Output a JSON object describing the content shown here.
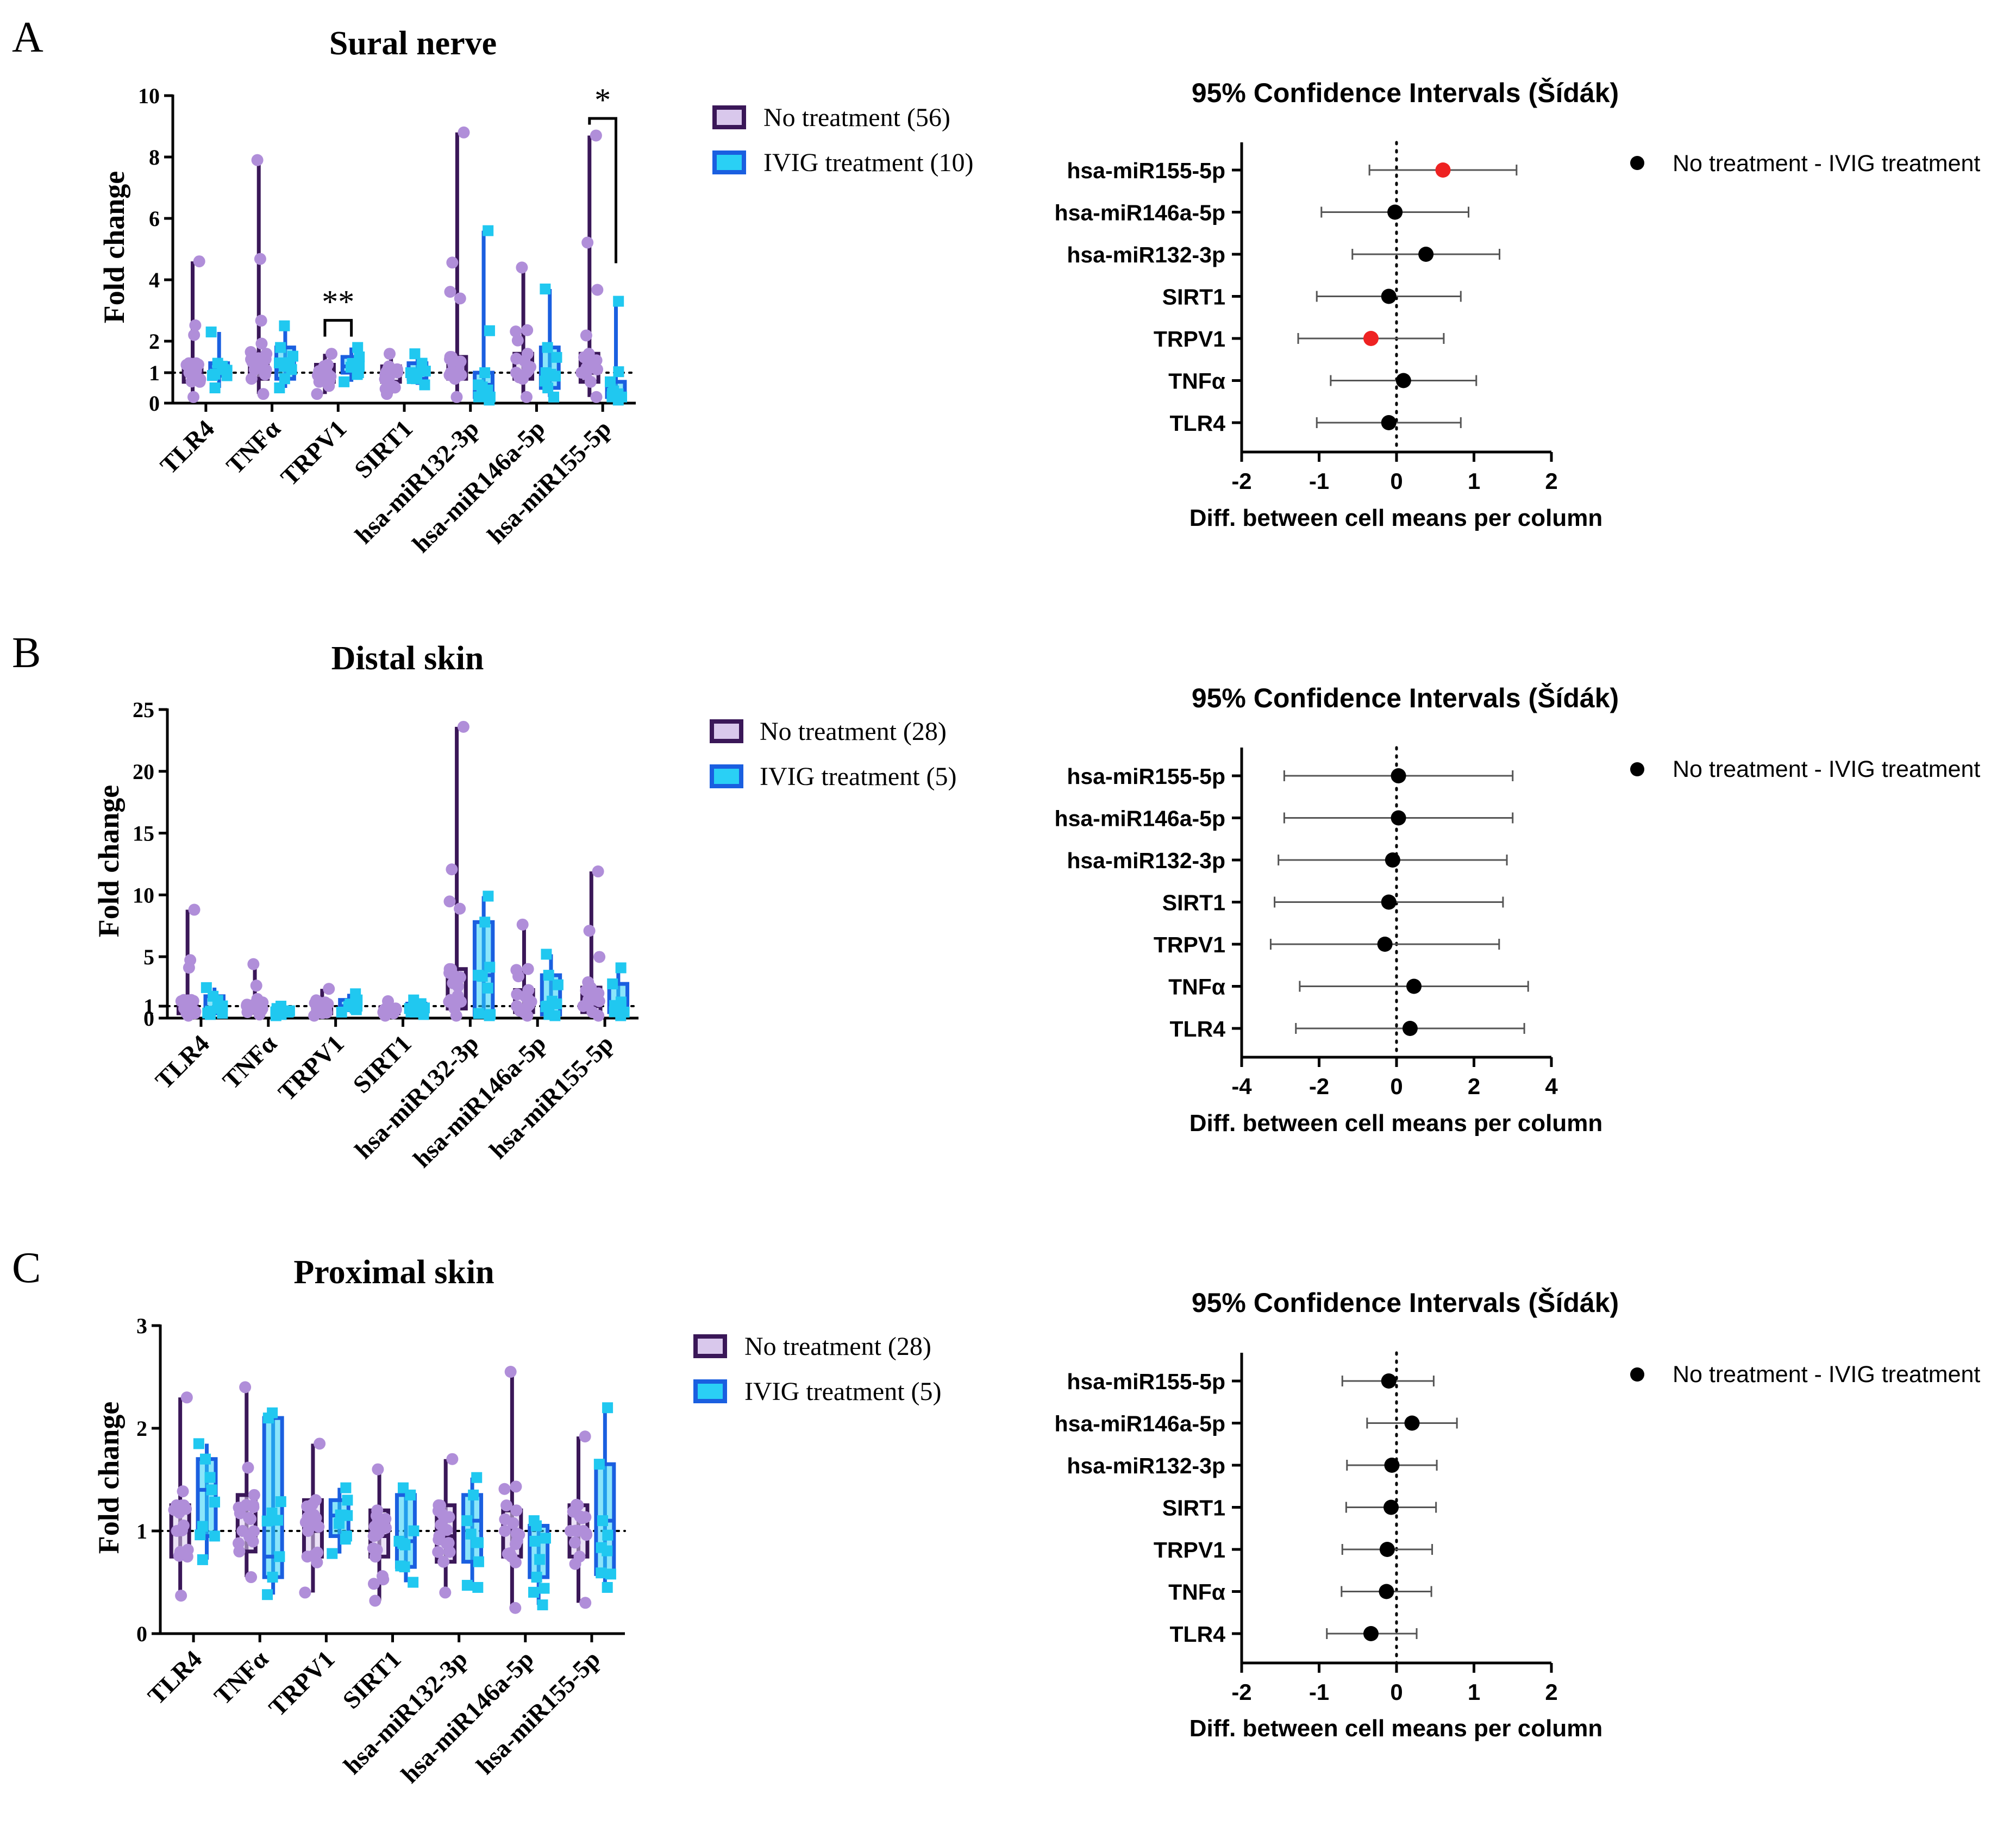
{
  "figure": {
    "colors": {
      "no_treatment_fill": "#d9c8ec",
      "no_treatment_stroke": "#3a1758",
      "no_treatment_points": "#b08ed9",
      "ivig_fill": "#2ad0f5",
      "ivig_stroke": "#1a5fe0",
      "ivig_points": "#20c8f0",
      "ci_point": "#000000",
      "ci_point_sig": "#ee2222"
    }
  },
  "chart_data": [
    {
      "id": "A-fold",
      "type": "box",
      "panel_letter": "A",
      "title": "Sural nerve",
      "ylabel": "Fold change",
      "yscale": "segmented",
      "ylim": [
        0,
        10
      ],
      "yticks": [
        0,
        1,
        2,
        4,
        6,
        8,
        10
      ],
      "categories": [
        "TLR4",
        "TNFα",
        "TRPV1",
        "SIRT1",
        "hsa-miR132-3p",
        "hsa-miR146a-5p",
        "hsa-miR155-5p"
      ],
      "legend": [
        {
          "label": "No treatment (56)",
          "key": "no_treatment"
        },
        {
          "label": "IVIG treatment (10)",
          "key": "ivig"
        }
      ],
      "series": [
        {
          "name": "No treatment",
          "key": "no_treatment",
          "boxes": [
            {
              "min": 0.2,
              "q1": 0.7,
              "median": 1.0,
              "q3": 1.3,
              "max": 4.6
            },
            {
              "min": 0.3,
              "q1": 0.8,
              "median": 1.1,
              "q3": 1.6,
              "max": 7.9
            },
            {
              "min": 0.3,
              "q1": 0.7,
              "median": 0.95,
              "q3": 1.25,
              "max": 1.6
            },
            {
              "min": 0.3,
              "q1": 0.7,
              "median": 0.95,
              "q3": 1.2,
              "max": 1.6
            },
            {
              "min": 0.2,
              "q1": 0.8,
              "median": 1.0,
              "q3": 1.5,
              "max": 8.8
            },
            {
              "min": 0.2,
              "q1": 0.8,
              "median": 1.0,
              "q3": 1.6,
              "max": 4.4
            },
            {
              "min": 0.2,
              "q1": 0.7,
              "median": 1.0,
              "q3": 1.6,
              "max": 8.7
            }
          ]
        },
        {
          "name": "IVIG treatment",
          "key": "ivig",
          "boxes": [
            {
              "min": 0.5,
              "q1": 0.9,
              "median": 1.1,
              "q3": 1.3,
              "max": 2.3
            },
            {
              "min": 0.5,
              "q1": 0.8,
              "median": 1.1,
              "q3": 1.8,
              "max": 2.5
            },
            {
              "min": 0.7,
              "q1": 1.0,
              "median": 1.2,
              "q3": 1.5,
              "max": 1.8
            },
            {
              "min": 0.6,
              "q1": 0.8,
              "median": 1.0,
              "q3": 1.3,
              "max": 1.6
            },
            {
              "min": 0.1,
              "q1": 0.2,
              "median": 0.6,
              "q3": 1.0,
              "max": 5.6
            },
            {
              "min": 0.2,
              "q1": 0.5,
              "median": 1.0,
              "q3": 1.8,
              "max": 3.7
            },
            {
              "min": 0.1,
              "q1": 0.2,
              "median": 0.4,
              "q3": 0.7,
              "max": 3.3
            }
          ]
        }
      ],
      "significance": [
        {
          "category": "TRPV1",
          "label": "**"
        },
        {
          "category": "hsa-miR155-5p",
          "label": "*"
        }
      ]
    },
    {
      "id": "A-ci",
      "type": "forest",
      "title": "95% Confidence Intervals (Šídák)",
      "xlabel": "Diff. between cell means per column",
      "xlim": [
        -2,
        2
      ],
      "xticks": [
        -2,
        -1,
        0,
        1,
        2
      ],
      "legend": "No treatment - IVIG treatment",
      "rows": [
        {
          "label": "hsa-miR155-5p",
          "diff": 0.6,
          "lo": -0.35,
          "hi": 1.55,
          "significant": true
        },
        {
          "label": "hsa-miR146a-5p",
          "diff": -0.02,
          "lo": -0.97,
          "hi": 0.93,
          "significant": false
        },
        {
          "label": "hsa-miR132-3p",
          "diff": 0.38,
          "lo": -0.57,
          "hi": 1.33,
          "significant": false
        },
        {
          "label": "SIRT1",
          "diff": -0.1,
          "lo": -1.03,
          "hi": 0.83,
          "significant": false
        },
        {
          "label": "TRPV1",
          "diff": -0.33,
          "lo": -1.27,
          "hi": 0.61,
          "significant": true
        },
        {
          "label": "TNFα",
          "diff": 0.09,
          "lo": -0.85,
          "hi": 1.03,
          "significant": false
        },
        {
          "label": "TLR4",
          "diff": -0.1,
          "lo": -1.03,
          "hi": 0.83,
          "significant": false
        }
      ]
    },
    {
      "id": "B-fold",
      "type": "box",
      "panel_letter": "B",
      "title": "Distal skin",
      "ylabel": "Fold change",
      "yscale": "segmented",
      "ylim": [
        0,
        25
      ],
      "yticks": [
        0,
        1,
        5,
        10,
        15,
        20,
        25
      ],
      "categories": [
        "TLR4",
        "TNFα",
        "TRPV1",
        "SIRT1",
        "hsa-miR132-3p",
        "hsa-miR146a-5p",
        "hsa-miR155-5p"
      ],
      "legend": [
        {
          "label": "No treatment (28)",
          "key": "no_treatment"
        },
        {
          "label": "IVIG treatment (5)",
          "key": "ivig"
        }
      ],
      "series": [
        {
          "name": "No treatment",
          "key": "no_treatment",
          "boxes": [
            {
              "min": 0.2,
              "q1": 0.4,
              "median": 0.8,
              "q3": 1.5,
              "max": 8.8
            },
            {
              "min": 0.3,
              "q1": 0.5,
              "median": 0.8,
              "q3": 1.3,
              "max": 4.4
            },
            {
              "min": 0.2,
              "q1": 0.4,
              "median": 0.7,
              "q3": 1.2,
              "max": 2.4
            },
            {
              "min": 0.2,
              "q1": 0.4,
              "median": 0.6,
              "q3": 0.9,
              "max": 1.4
            },
            {
              "min": 0.2,
              "q1": 0.8,
              "median": 1.5,
              "q3": 4.0,
              "max": 23.6
            },
            {
              "min": 0.2,
              "q1": 0.5,
              "median": 1.0,
              "q3": 2.3,
              "max": 7.6
            },
            {
              "min": 0.2,
              "q1": 0.5,
              "median": 1.0,
              "q3": 2.5,
              "max": 11.9
            }
          ]
        },
        {
          "name": "IVIG treatment",
          "key": "ivig",
          "boxes": [
            {
              "min": 0.3,
              "q1": 0.4,
              "median": 0.8,
              "q3": 1.8,
              "max": 2.5
            },
            {
              "min": 0.2,
              "q1": 0.3,
              "median": 0.5,
              "q3": 0.8,
              "max": 1.0
            },
            {
              "min": 0.5,
              "q1": 0.7,
              "median": 1.0,
              "q3": 1.5,
              "max": 2.0
            },
            {
              "min": 0.3,
              "q1": 0.5,
              "median": 0.8,
              "q3": 1.2,
              "max": 1.5
            },
            {
              "min": 0.2,
              "q1": 0.3,
              "median": 3.5,
              "q3": 7.8,
              "max": 9.9
            },
            {
              "min": 0.2,
              "q1": 0.3,
              "median": 1.0,
              "q3": 3.5,
              "max": 5.2
            },
            {
              "min": 0.2,
              "q1": 0.5,
              "median": 1.0,
              "q3": 2.8,
              "max": 4.1
            }
          ]
        }
      ],
      "significance": []
    },
    {
      "id": "B-ci",
      "type": "forest",
      "title": "95% Confidence Intervals (Šídák)",
      "xlabel": "Diff. between cell means per column",
      "xlim": [
        -4,
        4
      ],
      "xticks": [
        -4,
        -2,
        0,
        2,
        4
      ],
      "legend": "No treatment - IVIG treatment",
      "rows": [
        {
          "label": "hsa-miR155-5p",
          "diff": 0.05,
          "lo": -2.9,
          "hi": 3.0,
          "significant": false
        },
        {
          "label": "hsa-miR146a-5p",
          "diff": 0.05,
          "lo": -2.9,
          "hi": 3.0,
          "significant": false
        },
        {
          "label": "hsa-miR132-3p",
          "diff": -0.1,
          "lo": -3.05,
          "hi": 2.85,
          "significant": false
        },
        {
          "label": "SIRT1",
          "diff": -0.2,
          "lo": -3.15,
          "hi": 2.75,
          "significant": false
        },
        {
          "label": "TRPV1",
          "diff": -0.3,
          "lo": -3.25,
          "hi": 2.65,
          "significant": false
        },
        {
          "label": "TNFα",
          "diff": 0.45,
          "lo": -2.5,
          "hi": 3.4,
          "significant": false
        },
        {
          "label": "TLR4",
          "diff": 0.35,
          "lo": -2.6,
          "hi": 3.3,
          "significant": false
        }
      ]
    },
    {
      "id": "C-fold",
      "type": "box",
      "panel_letter": "C",
      "title": "Proximal skin",
      "ylabel": "Fold change",
      "yscale": "linear",
      "ylim": [
        0,
        3
      ],
      "yticks": [
        0,
        1,
        2,
        3
      ],
      "categories": [
        "TLR4",
        "TNFα",
        "TRPV1",
        "SIRT1",
        "hsa-miR132-3p",
        "hsa-miR146a-5p",
        "hsa-miR155-5p"
      ],
      "legend": [
        {
          "label": "No treatment (28)",
          "key": "no_treatment"
        },
        {
          "label": "IVIG treatment (5)",
          "key": "ivig"
        }
      ],
      "series": [
        {
          "name": "No treatment",
          "key": "no_treatment",
          "boxes": [
            {
              "min": 0.37,
              "q1": 0.75,
              "median": 1.0,
              "q3": 1.25,
              "max": 2.3
            },
            {
              "min": 0.55,
              "q1": 0.8,
              "median": 1.0,
              "q3": 1.35,
              "max": 2.4
            },
            {
              "min": 0.4,
              "q1": 0.75,
              "median": 1.0,
              "q3": 1.3,
              "max": 1.85
            },
            {
              "min": 0.32,
              "q1": 0.75,
              "median": 0.95,
              "q3": 1.2,
              "max": 1.6
            },
            {
              "min": 0.4,
              "q1": 0.7,
              "median": 0.95,
              "q3": 1.25,
              "max": 1.7
            },
            {
              "min": 0.25,
              "q1": 0.75,
              "median": 1.0,
              "q3": 1.2,
              "max": 2.55
            },
            {
              "min": 0.3,
              "q1": 0.75,
              "median": 1.0,
              "q3": 1.25,
              "max": 1.92
            }
          ]
        },
        {
          "name": "IVIG treatment",
          "key": "ivig",
          "boxes": [
            {
              "min": 0.72,
              "q1": 0.95,
              "median": 1.4,
              "q3": 1.7,
              "max": 1.85
            },
            {
              "min": 0.38,
              "q1": 0.55,
              "median": 0.75,
              "q3": 2.1,
              "max": 2.15
            },
            {
              "min": 0.78,
              "q1": 0.95,
              "median": 1.15,
              "q3": 1.3,
              "max": 1.42
            },
            {
              "min": 0.5,
              "q1": 0.65,
              "median": 0.9,
              "q3": 1.35,
              "max": 1.42
            },
            {
              "min": 0.45,
              "q1": 0.7,
              "median": 1.1,
              "q3": 1.35,
              "max": 1.52
            },
            {
              "min": 0.28,
              "q1": 0.55,
              "median": 0.9,
              "q3": 1.05,
              "max": 1.1
            },
            {
              "min": 0.45,
              "q1": 0.58,
              "median": 1.1,
              "q3": 1.65,
              "max": 2.2
            }
          ]
        }
      ],
      "significance": []
    },
    {
      "id": "C-ci",
      "type": "forest",
      "title": "95% Confidence Intervals (Šídák)",
      "xlabel": "Diff. between cell means per column",
      "xlim": [
        -2,
        2
      ],
      "xticks": [
        -2,
        -1,
        0,
        1,
        2
      ],
      "legend": "No treatment - IVIG treatment",
      "rows": [
        {
          "label": "hsa-miR155-5p",
          "diff": -0.1,
          "lo": -0.7,
          "hi": 0.48,
          "significant": false
        },
        {
          "label": "hsa-miR146a-5p",
          "diff": 0.2,
          "lo": -0.38,
          "hi": 0.78,
          "significant": false
        },
        {
          "label": "hsa-miR132-3p",
          "diff": -0.06,
          "lo": -0.64,
          "hi": 0.52,
          "significant": false
        },
        {
          "label": "SIRT1",
          "diff": -0.07,
          "lo": -0.65,
          "hi": 0.51,
          "significant": false
        },
        {
          "label": "TRPV1",
          "diff": -0.12,
          "lo": -0.7,
          "hi": 0.46,
          "significant": false
        },
        {
          "label": "TNFα",
          "diff": -0.13,
          "lo": -0.71,
          "hi": 0.45,
          "significant": false
        },
        {
          "label": "TLR4",
          "diff": -0.33,
          "lo": -0.9,
          "hi": 0.26,
          "significant": false
        }
      ]
    }
  ]
}
